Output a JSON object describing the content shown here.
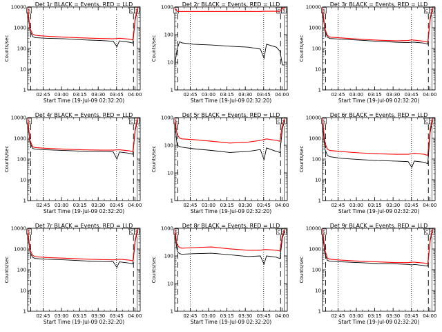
{
  "figure": {
    "xlabel": "Start Time (19-Jul-09 02:32:20)",
    "ylabel": "Counts/sec",
    "xticks": [
      "02:45",
      "03:00",
      "03:15",
      "03:30",
      "03:45",
      "04:00"
    ],
    "yticks": [
      "1",
      "10",
      "100",
      "1000",
      "10000"
    ],
    "marker_labels": [
      "S",
      "C",
      "S"
    ],
    "colors": {
      "events": "#000000",
      "lld": "#ff0000"
    }
  },
  "chart_data": [
    {
      "type": "line",
      "title": "Det 1r BLACK = Events, RED = LLD",
      "ylim": [
        1,
        10000
      ],
      "yscale": "log",
      "x_minutes": [
        0,
        2,
        4,
        6,
        15,
        30,
        45,
        60,
        70,
        73,
        75,
        83,
        86,
        88,
        90
      ],
      "series": [
        {
          "name": "Events",
          "values": [
            6000,
            700,
            380,
            330,
            310,
            290,
            260,
            240,
            220,
            120,
            230,
            200,
            180,
            2500,
            8000
          ]
        },
        {
          "name": "LLD",
          "values": [
            9000,
            900,
            500,
            430,
            390,
            350,
            320,
            300,
            290,
            300,
            310,
            280,
            260,
            3000,
            9500
          ]
        }
      ]
    },
    {
      "type": "line",
      "title": "Det 2r BLACK = Events, RED = LLD",
      "ylim": [
        1,
        1000
      ],
      "yscale": "log",
      "x_minutes": [
        0,
        2,
        4,
        6,
        15,
        30,
        45,
        60,
        70,
        73,
        75,
        83,
        86,
        88,
        90
      ],
      "series": [
        {
          "name": "Events",
          "values": [
            8,
            30,
            55,
            50,
            45,
            42,
            38,
            35,
            30,
            14,
            45,
            35,
            25,
            8,
            8
          ]
        },
        {
          "name": "LLD",
          "values": [
            900,
            700,
            690,
            690,
            690,
            690,
            690,
            690,
            690,
            700,
            700,
            700,
            700,
            900,
            900
          ]
        }
      ]
    },
    {
      "type": "line",
      "title": "Det 3r BLACK = Events, RED = LLD",
      "ylim": [
        1,
        10000
      ],
      "yscale": "log",
      "x_minutes": [
        0,
        2,
        4,
        6,
        15,
        30,
        45,
        60,
        70,
        73,
        75,
        83,
        86,
        88,
        90
      ],
      "series": [
        {
          "name": "Events",
          "values": [
            6000,
            700,
            350,
            300,
            280,
            250,
            220,
            200,
            190,
            200,
            200,
            180,
            160,
            2500,
            8000
          ]
        },
        {
          "name": "LLD",
          "values": [
            9000,
            900,
            420,
            350,
            320,
            280,
            250,
            230,
            240,
            260,
            250,
            220,
            200,
            3000,
            9500
          ]
        }
      ]
    },
    {
      "type": "line",
      "title": "Det 4r BLACK = Events, RED = LLD",
      "ylim": [
        1,
        10000
      ],
      "yscale": "log",
      "x_minutes": [
        0,
        2,
        4,
        6,
        15,
        30,
        45,
        60,
        70,
        73,
        75,
        83,
        86,
        88,
        90
      ],
      "series": [
        {
          "name": "Events",
          "values": [
            6000,
            600,
            330,
            300,
            280,
            260,
            240,
            230,
            220,
            100,
            220,
            190,
            170,
            2500,
            8000
          ]
        },
        {
          "name": "LLD",
          "values": [
            9000,
            800,
            400,
            360,
            330,
            300,
            280,
            270,
            270,
            280,
            280,
            250,
            230,
            3000,
            9500
          ]
        }
      ]
    },
    {
      "type": "line",
      "title": "Det 5r BLACK = Events, RED = LLD",
      "ylim": [
        1,
        1000
      ],
      "yscale": "log",
      "x_minutes": [
        0,
        2,
        4,
        6,
        15,
        30,
        45,
        60,
        70,
        73,
        75,
        83,
        86,
        88,
        90
      ],
      "series": [
        {
          "name": "Events",
          "values": [
            700,
            100,
            90,
            85,
            75,
            65,
            55,
            60,
            70,
            30,
            80,
            60,
            55,
            400,
            800
          ]
        },
        {
          "name": "LLD",
          "values": [
            900,
            250,
            180,
            170,
            160,
            140,
            120,
            130,
            150,
            160,
            170,
            150,
            140,
            600,
            900
          ]
        }
      ]
    },
    {
      "type": "line",
      "title": "Det 6r BLACK = Events, RED = LLD",
      "ylim": [
        1,
        10000
      ],
      "yscale": "log",
      "x_minutes": [
        0,
        2,
        4,
        6,
        15,
        30,
        45,
        60,
        70,
        73,
        75,
        83,
        86,
        88,
        90
      ],
      "series": [
        {
          "name": "Events",
          "values": [
            5000,
            300,
            150,
            130,
            110,
            95,
            85,
            80,
            75,
            40,
            80,
            70,
            60,
            2000,
            8000
          ]
        },
        {
          "name": "LLD",
          "values": [
            9000,
            600,
            300,
            260,
            230,
            200,
            180,
            170,
            170,
            180,
            190,
            170,
            150,
            3000,
            9500
          ]
        }
      ]
    },
    {
      "type": "line",
      "title": "Det 7r BLACK = Events, RED = LLD",
      "ylim": [
        1,
        10000
      ],
      "yscale": "log",
      "x_minutes": [
        0,
        2,
        4,
        6,
        15,
        30,
        45,
        60,
        70,
        73,
        75,
        83,
        86,
        88,
        90
      ],
      "series": [
        {
          "name": "Events",
          "values": [
            6000,
            700,
            400,
            350,
            320,
            300,
            270,
            250,
            240,
            130,
            240,
            210,
            190,
            2500,
            8000
          ]
        },
        {
          "name": "LLD",
          "values": [
            9000,
            900,
            500,
            430,
            390,
            360,
            330,
            310,
            300,
            310,
            320,
            290,
            270,
            3000,
            9500
          ]
        }
      ]
    },
    {
      "type": "line",
      "title": "Det 8r BLACK = Events, RED = LLD",
      "ylim": [
        1,
        1000
      ],
      "yscale": "log",
      "x_minutes": [
        0,
        2,
        4,
        6,
        15,
        30,
        45,
        60,
        70,
        73,
        75,
        83,
        86,
        88,
        90
      ],
      "series": [
        {
          "name": "Events",
          "values": [
            700,
            150,
            120,
            115,
            120,
            125,
            110,
            95,
            100,
            50,
            100,
            90,
            80,
            450,
            800
          ]
        },
        {
          "name": "LLD",
          "values": [
            900,
            250,
            200,
            190,
            200,
            210,
            180,
            160,
            160,
            170,
            170,
            160,
            150,
            600,
            900
          ]
        }
      ]
    },
    {
      "type": "line",
      "title": "Det 9r BLACK = Events, RED = LLD",
      "ylim": [
        1,
        10000
      ],
      "yscale": "log",
      "x_minutes": [
        0,
        2,
        4,
        6,
        15,
        30,
        45,
        60,
        70,
        73,
        75,
        83,
        86,
        88,
        90
      ],
      "series": [
        {
          "name": "Events",
          "values": [
            5000,
            600,
            280,
            260,
            240,
            220,
            200,
            190,
            180,
            170,
            180,
            160,
            150,
            2500,
            8000
          ]
        },
        {
          "name": "LLD",
          "values": [
            9000,
            900,
            360,
            320,
            290,
            260,
            240,
            220,
            220,
            230,
            230,
            210,
            190,
            3000,
            9500
          ]
        }
      ]
    }
  ]
}
